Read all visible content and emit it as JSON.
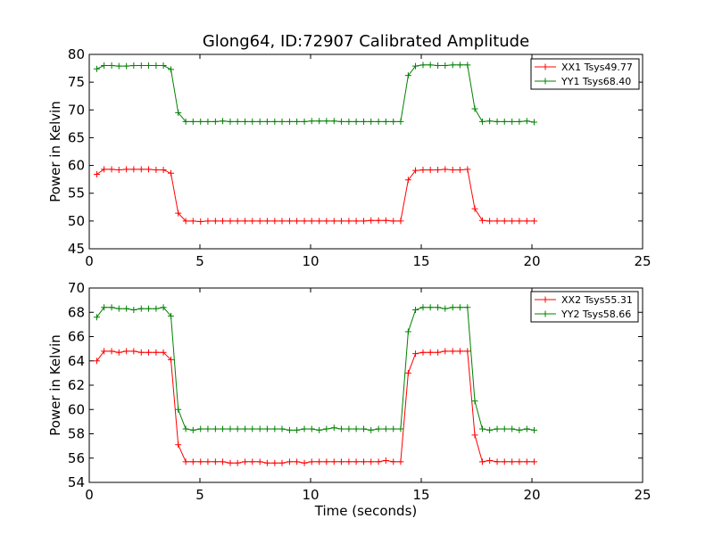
{
  "title": "Glong64, ID:72907 Calibrated Amplitude",
  "chart_data": [
    {
      "type": "line",
      "title": "Glong64, ID:72907 Calibrated Amplitude",
      "ylabel": "Power in Kelvin",
      "xlabel": "",
      "xlim": [
        0,
        25
      ],
      "ylim": [
        45,
        80
      ],
      "xticks": [
        "0",
        "5",
        "10",
        "15",
        "20",
        "25"
      ],
      "yticks": [
        "45",
        "50",
        "55",
        "60",
        "65",
        "70",
        "75",
        "80"
      ],
      "grid": false,
      "legend_position": "top-right",
      "x": [
        0.34,
        0.67,
        1.01,
        1.34,
        1.68,
        2.01,
        2.35,
        2.68,
        3.02,
        3.35,
        3.69,
        4.02,
        4.36,
        4.69,
        5.03,
        5.36,
        5.7,
        6.03,
        6.37,
        6.7,
        7.04,
        7.37,
        7.71,
        8.04,
        8.38,
        8.71,
        9.05,
        9.38,
        9.72,
        10.05,
        10.39,
        10.72,
        11.06,
        11.39,
        11.73,
        12.06,
        12.4,
        12.73,
        13.07,
        13.4,
        13.74,
        14.07,
        14.41,
        14.74,
        15.08,
        15.41,
        15.75,
        16.08,
        16.42,
        16.75,
        17.09,
        17.42,
        17.76,
        18.09,
        18.43,
        18.76,
        19.1,
        19.43,
        19.77,
        20.1
      ],
      "series": [
        {
          "name": "XX1 Tsys49.77",
          "color": "#ff0000",
          "values": [
            58.4,
            59.3,
            59.3,
            59.2,
            59.3,
            59.3,
            59.3,
            59.3,
            59.2,
            59.2,
            58.6,
            51.4,
            50.0,
            50.0,
            49.9,
            50.0,
            50.0,
            50.0,
            50.0,
            50.0,
            50.0,
            50.0,
            50.0,
            50.0,
            50.0,
            50.0,
            50.0,
            50.0,
            50.0,
            50.0,
            50.0,
            50.0,
            50.0,
            50.0,
            50.0,
            50.0,
            50.0,
            50.1,
            50.1,
            50.1,
            50.0,
            50.0,
            57.4,
            59.1,
            59.2,
            59.2,
            59.2,
            59.3,
            59.2,
            59.2,
            59.3,
            52.2,
            50.1,
            50.0,
            50.0,
            50.0,
            50.0,
            50.0,
            50.0,
            50.0
          ]
        },
        {
          "name": "YY1 Tsys68.40",
          "color": "#008000",
          "values": [
            77.4,
            78.0,
            78.0,
            77.9,
            77.9,
            78.0,
            78.0,
            78.0,
            78.0,
            78.0,
            77.3,
            69.5,
            67.9,
            67.9,
            67.9,
            67.9,
            67.9,
            68.0,
            67.9,
            67.9,
            67.9,
            67.9,
            67.9,
            67.9,
            67.9,
            67.9,
            67.9,
            67.9,
            67.9,
            68.0,
            68.0,
            68.0,
            68.0,
            67.9,
            67.9,
            67.9,
            67.9,
            67.9,
            67.9,
            67.9,
            67.9,
            67.9,
            76.2,
            77.9,
            78.1,
            78.1,
            78.0,
            78.0,
            78.1,
            78.1,
            78.1,
            70.2,
            67.9,
            68.0,
            67.9,
            67.9,
            67.9,
            67.9,
            68.0,
            67.8
          ]
        }
      ]
    },
    {
      "type": "line",
      "title": "",
      "ylabel": "Power in Kelvin",
      "xlabel": "Time (seconds)",
      "xlim": [
        0,
        25
      ],
      "ylim": [
        54,
        70
      ],
      "xticks": [
        "0",
        "5",
        "10",
        "15",
        "20",
        "25"
      ],
      "yticks": [
        "54",
        "56",
        "58",
        "60",
        "62",
        "64",
        "66",
        "68",
        "70"
      ],
      "grid": false,
      "legend_position": "top-right",
      "x": [
        0.34,
        0.67,
        1.01,
        1.34,
        1.68,
        2.01,
        2.35,
        2.68,
        3.02,
        3.35,
        3.69,
        4.02,
        4.36,
        4.69,
        5.03,
        5.36,
        5.7,
        6.03,
        6.37,
        6.7,
        7.04,
        7.37,
        7.71,
        8.04,
        8.38,
        8.71,
        9.05,
        9.38,
        9.72,
        10.05,
        10.39,
        10.72,
        11.06,
        11.39,
        11.73,
        12.06,
        12.4,
        12.73,
        13.07,
        13.4,
        13.74,
        14.07,
        14.41,
        14.74,
        15.08,
        15.41,
        15.75,
        16.08,
        16.42,
        16.75,
        17.09,
        17.42,
        17.76,
        18.09,
        18.43,
        18.76,
        19.1,
        19.43,
        19.77,
        20.1
      ],
      "series": [
        {
          "name": "XX2 Tsys55.31",
          "color": "#ff0000",
          "values": [
            64.0,
            64.8,
            64.8,
            64.7,
            64.8,
            64.8,
            64.7,
            64.7,
            64.7,
            64.7,
            64.1,
            57.1,
            55.7,
            55.7,
            55.7,
            55.7,
            55.7,
            55.7,
            55.6,
            55.6,
            55.7,
            55.7,
            55.7,
            55.6,
            55.6,
            55.6,
            55.7,
            55.7,
            55.6,
            55.7,
            55.7,
            55.7,
            55.7,
            55.7,
            55.7,
            55.7,
            55.7,
            55.7,
            55.7,
            55.8,
            55.7,
            55.7,
            63.0,
            64.6,
            64.7,
            64.7,
            64.7,
            64.8,
            64.8,
            64.8,
            64.8,
            57.9,
            55.7,
            55.8,
            55.7,
            55.7,
            55.7,
            55.7,
            55.7,
            55.7
          ]
        },
        {
          "name": "YY2 Tsys58.66",
          "color": "#008000",
          "values": [
            67.6,
            68.4,
            68.4,
            68.3,
            68.3,
            68.2,
            68.3,
            68.3,
            68.3,
            68.4,
            67.7,
            60.0,
            58.4,
            58.3,
            58.4,
            58.4,
            58.4,
            58.4,
            58.4,
            58.4,
            58.4,
            58.4,
            58.4,
            58.4,
            58.4,
            58.4,
            58.3,
            58.3,
            58.4,
            58.4,
            58.3,
            58.4,
            58.5,
            58.4,
            58.4,
            58.4,
            58.4,
            58.3,
            58.4,
            58.4,
            58.4,
            58.4,
            66.4,
            68.2,
            68.4,
            68.4,
            68.4,
            68.3,
            68.4,
            68.4,
            68.4,
            60.7,
            58.4,
            58.3,
            58.4,
            58.4,
            58.4,
            58.3,
            58.4,
            58.3
          ]
        }
      ]
    }
  ]
}
